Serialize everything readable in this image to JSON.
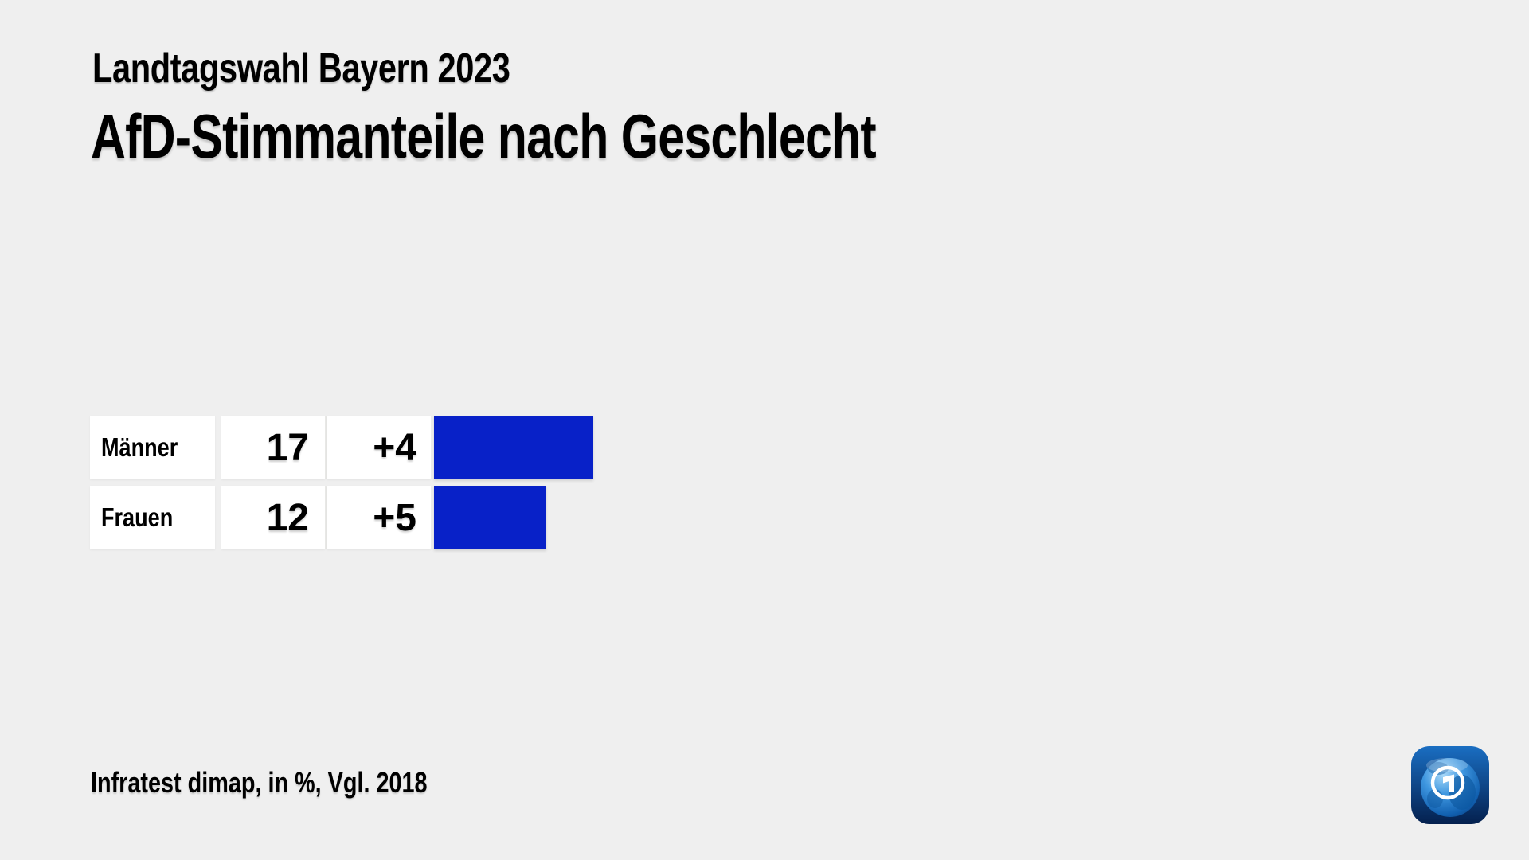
{
  "kicker": "Landtagswahl Bayern 2023",
  "title": "AfD-Stimmanteile nach Geschlecht",
  "footer": {
    "source_note": "Infratest dimap, in %, Vgl. 2018"
  },
  "logo": {
    "name": "ARD tagesschau logo"
  },
  "colors": {
    "background": "#efefef",
    "row_background": "#ffffff",
    "bar_blue": "#0821c8",
    "divider": "#e8e8e6",
    "text": "#000000"
  },
  "rows": [
    {
      "label": "Männer",
      "value": "17",
      "change": "+4"
    },
    {
      "label": "Frauen",
      "value": "12",
      "change": "+5"
    }
  ],
  "chart_data": {
    "type": "bar",
    "orientation": "horizontal",
    "title": "AfD-Stimmanteile nach Geschlecht",
    "subtitle": "Landtagswahl Bayern 2023",
    "categories": [
      "Männer",
      "Frauen"
    ],
    "values": [
      17,
      12
    ],
    "changes_vs_2018": [
      "+4",
      "+5"
    ],
    "unit": "%",
    "source": "Infratest dimap",
    "comparison": "Vgl. 2018",
    "bar_color": "#0821c8",
    "legend": "none",
    "grid": "off",
    "axis_labels": "none"
  }
}
